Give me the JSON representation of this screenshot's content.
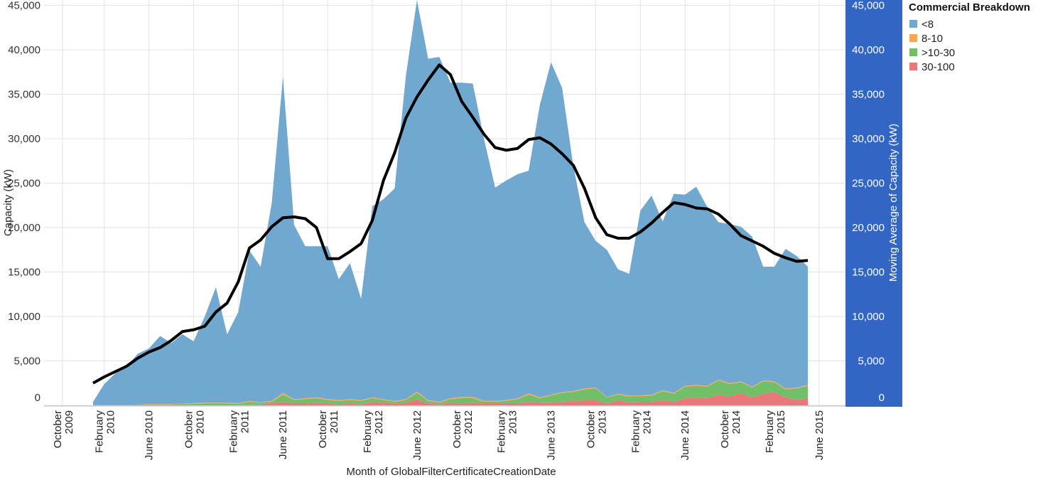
{
  "chart_data": {
    "type": "area",
    "stacked": true,
    "xlabel": "Month of GlobalFilterCertificateCreationDate",
    "ylabel": "Capacity (kW)",
    "y2label": "Moving Average of Capacity (kW)",
    "ylim": [
      0,
      45000
    ],
    "y2lim": [
      0,
      45000
    ],
    "yticks": [
      "0",
      "5,000",
      "10,000",
      "15,000",
      "20,000",
      "25,000",
      "30,000",
      "35,000",
      "40,000",
      "45,000"
    ],
    "ytick_values": [
      0,
      5000,
      10000,
      15000,
      20000,
      25000,
      30000,
      35000,
      40000,
      45000
    ],
    "x_start": "January 2010",
    "x_end": "May 2015",
    "xticks": [
      {
        "month_index": -3,
        "lines": [
          "October",
          "2009"
        ]
      },
      {
        "month_index": 1,
        "lines": [
          "February",
          "2010"
        ]
      },
      {
        "month_index": 5,
        "lines": [
          "June 2010"
        ]
      },
      {
        "month_index": 9,
        "lines": [
          "October",
          "2010"
        ]
      },
      {
        "month_index": 13,
        "lines": [
          "February",
          "2011"
        ]
      },
      {
        "month_index": 17,
        "lines": [
          "June 2011"
        ]
      },
      {
        "month_index": 21,
        "lines": [
          "October",
          "2011"
        ]
      },
      {
        "month_index": 25,
        "lines": [
          "February",
          "2012"
        ]
      },
      {
        "month_index": 29,
        "lines": [
          "June 2012"
        ]
      },
      {
        "month_index": 33,
        "lines": [
          "October",
          "2012"
        ]
      },
      {
        "month_index": 37,
        "lines": [
          "February",
          "2013"
        ]
      },
      {
        "month_index": 41,
        "lines": [
          "June 2013"
        ]
      },
      {
        "month_index": 45,
        "lines": [
          "October",
          "2013"
        ]
      },
      {
        "month_index": 49,
        "lines": [
          "February",
          "2014"
        ]
      },
      {
        "month_index": 53,
        "lines": [
          "June 2014"
        ]
      },
      {
        "month_index": 57,
        "lines": [
          "October",
          "2014"
        ]
      },
      {
        "month_index": 61,
        "lines": [
          "February",
          "2015"
        ]
      },
      {
        "month_index": 65,
        "lines": [
          "June 2015"
        ]
      }
    ],
    "legend": {
      "title": "Commercial Breakdown",
      "placement": "top-right"
    },
    "series": [
      {
        "name": "30-100",
        "color": "#e8787a",
        "values": [
          0,
          0,
          0,
          0,
          0,
          0,
          0,
          0,
          0,
          0,
          0,
          0,
          0,
          0,
          100,
          100,
          200,
          400,
          200,
          200,
          300,
          200,
          100,
          200,
          100,
          400,
          300,
          200,
          300,
          700,
          200,
          100,
          300,
          200,
          300,
          200,
          200,
          200,
          200,
          400,
          300,
          300,
          400,
          500,
          600,
          600,
          200,
          600,
          300,
          400,
          400,
          600,
          400,
          800,
          900,
          800,
          1200,
          1000,
          1400,
          900,
          1300,
          1500,
          900,
          600,
          800
        ]
      },
      {
        "name": ">10-30",
        "color": "#72bf6a",
        "values": [
          0,
          50,
          50,
          50,
          100,
          100,
          100,
          100,
          150,
          150,
          200,
          200,
          200,
          150,
          300,
          200,
          200,
          800,
          400,
          500,
          500,
          400,
          400,
          400,
          400,
          400,
          300,
          200,
          300,
          700,
          300,
          200,
          400,
          600,
          500,
          200,
          200,
          300,
          500,
          800,
          500,
          800,
          1000,
          1000,
          1200,
          1300,
          700,
          600,
          700,
          600,
          700,
          1000,
          900,
          1300,
          1300,
          1300,
          1600,
          1400,
          1200,
          1100,
          1400,
          1100,
          900,
          1300,
          1400
        ]
      },
      {
        "name": "8-10",
        "color": "#f5a65b",
        "values": [
          0,
          0,
          0,
          0,
          0,
          50,
          50,
          50,
          50,
          100,
          100,
          100,
          100,
          100,
          100,
          50,
          100,
          200,
          100,
          100,
          100,
          100,
          100,
          100,
          100,
          100,
          100,
          100,
          100,
          150,
          100,
          100,
          100,
          150,
          150,
          100,
          100,
          100,
          100,
          150,
          100,
          100,
          100,
          100,
          100,
          100,
          50,
          100,
          100,
          100,
          100,
          100,
          100,
          100,
          100,
          100,
          100,
          100,
          100,
          100,
          100,
          100,
          100,
          100,
          100
        ]
      },
      {
        "name": "<8",
        "color": "#71a8d0",
        "values": [
          400,
          2350,
          3550,
          4350,
          5700,
          6250,
          7650,
          6850,
          7800,
          6950,
          9700,
          13000,
          7700,
          10250,
          16900,
          15250,
          22300,
          35600,
          19600,
          17100,
          17000,
          17200,
          13600,
          15300,
          11400,
          21500,
          22500,
          23900,
          36300,
          44050,
          38400,
          38800,
          35500,
          35350,
          35250,
          29500,
          24000,
          24700,
          25200,
          25050,
          32900,
          37400,
          34200,
          25300,
          18700,
          16500,
          16550,
          14000,
          13700,
          20800,
          22400,
          19000,
          22400,
          21500,
          22300,
          20100,
          17700,
          17900,
          17400,
          16900,
          12800,
          12900,
          15700,
          14800,
          13300
        ]
      }
    ],
    "legend_order": [
      "<8",
      "8-10",
      ">10-30",
      "30-100"
    ],
    "moving_average": {
      "name": "Moving Average of Capacity (kW)",
      "color": "#000000",
      "values": [
        2500,
        3200,
        3800,
        4400,
        5300,
        6000,
        6500,
        7300,
        8300,
        8500,
        8900,
        10500,
        11500,
        13900,
        17700,
        18600,
        20100,
        21100,
        21200,
        21000,
        20000,
        16500,
        16500,
        17300,
        18200,
        20800,
        25300,
        28400,
        32300,
        34700,
        36600,
        38300,
        37200,
        34200,
        32400,
        30500,
        29000,
        28700,
        28900,
        29900,
        30100,
        29400,
        28300,
        27000,
        24400,
        21100,
        19200,
        18800,
        18800,
        19500,
        20500,
        21700,
        22800,
        22600,
        22200,
        22100,
        21500,
        20400,
        19100,
        18500,
        17900,
        17100,
        16600,
        16200,
        16300
      ]
    },
    "right_axis_color": "#3366c4",
    "grid": true
  }
}
